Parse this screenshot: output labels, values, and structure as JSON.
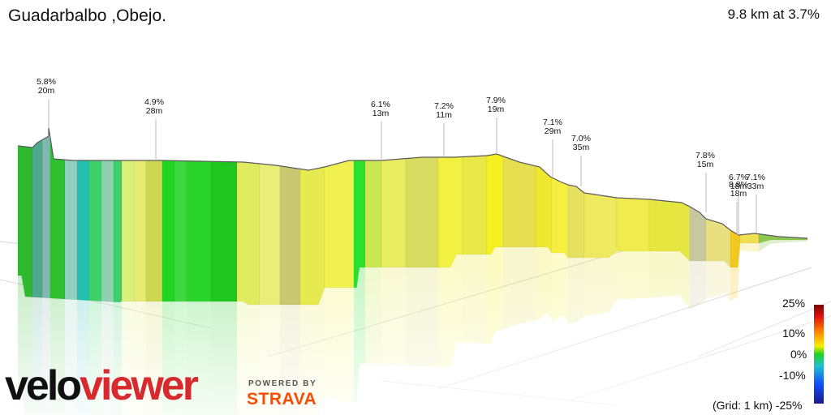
{
  "header": {
    "title": "Guadarbalbo ,Obejo.",
    "summary": "9.8 km at 3.7%"
  },
  "legend": {
    "labels": [
      "25%",
      "10%",
      "0%",
      "-10%",
      "-25%"
    ],
    "grid_note": "(Grid: 1 km)"
  },
  "branding": {
    "logo_part1": "velo",
    "logo_part2": "viewer",
    "powered": "POWERED BY",
    "strava": "STRAVA"
  },
  "colors": {
    "brand_red": "#d8292e",
    "strava_orange": "#fc4c02",
    "gradient_scale": [
      "#7b0000",
      "#e01010",
      "#ff8a00",
      "#f5f000",
      "#20d020",
      "#20c0d0",
      "#1050ff",
      "#1a1a8a"
    ]
  },
  "chart_data": {
    "type": "area",
    "title": "Guadarbalbo ,Obejo.",
    "distance_km": 9.8,
    "average_grade_pct": 3.7,
    "color_scale_pct": [
      -25,
      25
    ],
    "grid_km": 1,
    "annotations": [
      {
        "grade": "5.8%",
        "length": "20m"
      },
      {
        "grade": "4.9%",
        "length": "28m"
      },
      {
        "grade": "6.1%",
        "length": "13m"
      },
      {
        "grade": "7.2%",
        "length": "11m"
      },
      {
        "grade": "7.9%",
        "length": "19m"
      },
      {
        "grade": "7.1%",
        "length": "29m"
      },
      {
        "grade": "7.0%",
        "length": "35m"
      },
      {
        "grade": "7.8%",
        "length": "15m"
      },
      {
        "grade": "6.7%",
        "length": "18m"
      },
      {
        "grade": "8.8%",
        "length": "18m"
      },
      {
        "grade": "7.1%",
        "length": "33m"
      }
    ]
  }
}
